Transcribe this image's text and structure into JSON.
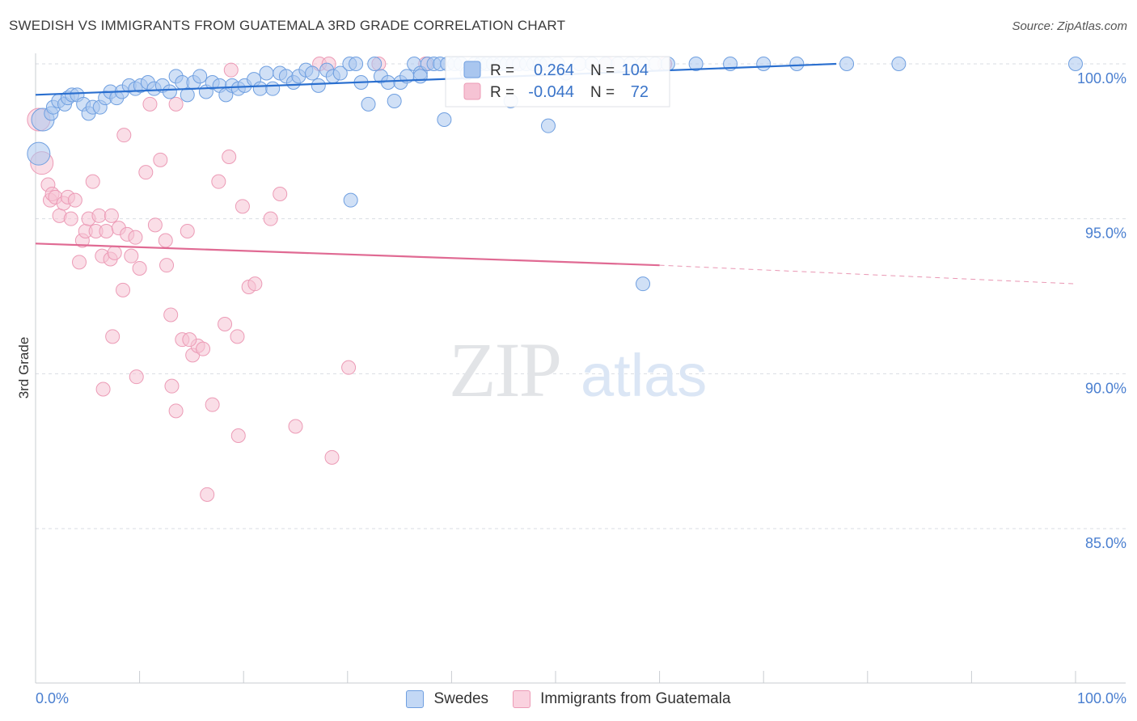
{
  "header": {
    "title": "SWEDISH VS IMMIGRANTS FROM GUATEMALA 3RD GRADE CORRELATION CHART",
    "source": "Source: ZipAtlas.com"
  },
  "watermark": {
    "zip": "ZIP",
    "atlas": "atlas"
  },
  "colors": {
    "blue_fill": "#a9c6ef",
    "blue_stroke": "#6f9fe0",
    "blue_line": "#2a6fcf",
    "pink_fill": "#f6c3d4",
    "pink_stroke": "#ec9bb6",
    "pink_line": "#e06a93",
    "tick_label": "#4a7fd0",
    "grid": "#d9dde3"
  },
  "legend_box": {
    "rows": [
      {
        "r_label": "R =",
        "r_value": "0.264",
        "n_label": "N =",
        "n_value": "104",
        "series": "blue"
      },
      {
        "r_label": "R =",
        "r_value": "-0.044",
        "n_label": "N =",
        "n_value": "72",
        "series": "pink"
      }
    ]
  },
  "bottom_legend": [
    {
      "label": "Swedes",
      "series": "blue"
    },
    {
      "label": "Immigrants from Guatemala",
      "series": "pink"
    }
  ],
  "chart_data": {
    "type": "scatter",
    "title": "SWEDISH VS IMMIGRANTS FROM GUATEMALA 3RD GRADE CORRELATION CHART",
    "xlabel": "",
    "ylabel": "3rd Grade",
    "x_tick_labels": [
      "0.0%",
      "100.0%"
    ],
    "y_tick_labels": [
      "100.0%",
      "95.0%",
      "90.0%",
      "85.0%"
    ],
    "y_ticks": [
      100,
      95,
      90,
      85
    ],
    "xlim": [
      0,
      100
    ],
    "ylim": [
      80.5,
      100.4
    ],
    "grid": true,
    "legend_placement": "top-center",
    "series": [
      {
        "name": "Swedes",
        "color": "#a9c6ef",
        "trend": {
          "x0": 0,
          "y0": 99.0,
          "x1": 77,
          "y1": 100.0
        },
        "points": [
          [
            0.3,
            97.1
          ],
          [
            0.7,
            98.2
          ],
          [
            1.5,
            98.4
          ],
          [
            1.7,
            98.6
          ],
          [
            2.2,
            98.8
          ],
          [
            2.8,
            98.7
          ],
          [
            3.1,
            98.9
          ],
          [
            3.5,
            99.0
          ],
          [
            4.0,
            99.0
          ],
          [
            4.6,
            98.7
          ],
          [
            5.1,
            98.4
          ],
          [
            5.5,
            98.6
          ],
          [
            6.2,
            98.6
          ],
          [
            6.7,
            98.9
          ],
          [
            7.2,
            99.1
          ],
          [
            7.8,
            98.9
          ],
          [
            8.3,
            99.1
          ],
          [
            9.0,
            99.3
          ],
          [
            9.6,
            99.2
          ],
          [
            10.1,
            99.3
          ],
          [
            10.8,
            99.4
          ],
          [
            11.4,
            99.2
          ],
          [
            12.2,
            99.3
          ],
          [
            12.9,
            99.1
          ],
          [
            13.5,
            99.6
          ],
          [
            14.1,
            99.4
          ],
          [
            14.6,
            99.0
          ],
          [
            15.2,
            99.4
          ],
          [
            15.8,
            99.6
          ],
          [
            16.4,
            99.1
          ],
          [
            17.0,
            99.4
          ],
          [
            17.7,
            99.3
          ],
          [
            18.3,
            99.0
          ],
          [
            18.9,
            99.3
          ],
          [
            19.5,
            99.2
          ],
          [
            20.1,
            99.3
          ],
          [
            21.0,
            99.5
          ],
          [
            21.6,
            99.2
          ],
          [
            22.2,
            99.7
          ],
          [
            22.8,
            99.2
          ],
          [
            23.5,
            99.7
          ],
          [
            24.1,
            99.6
          ],
          [
            24.8,
            99.4
          ],
          [
            25.3,
            99.6
          ],
          [
            26.0,
            99.8
          ],
          [
            26.6,
            99.7
          ],
          [
            27.2,
            99.3
          ],
          [
            28.0,
            99.8
          ],
          [
            28.6,
            99.6
          ],
          [
            29.3,
            99.7
          ],
          [
            30.2,
            100.0
          ],
          [
            30.8,
            100.0
          ],
          [
            31.3,
            99.4
          ],
          [
            32.0,
            98.7
          ],
          [
            32.6,
            100.0
          ],
          [
            33.2,
            99.6
          ],
          [
            33.9,
            99.4
          ],
          [
            34.5,
            98.8
          ],
          [
            35.1,
            99.4
          ],
          [
            35.7,
            99.6
          ],
          [
            36.4,
            100.0
          ],
          [
            37.0,
            99.7
          ],
          [
            37.7,
            100.0
          ],
          [
            38.3,
            100.0
          ],
          [
            38.9,
            100.0
          ],
          [
            39.6,
            100.0
          ],
          [
            40.3,
            100.0
          ],
          [
            40.9,
            100.0
          ],
          [
            41.5,
            99.7
          ],
          [
            42.2,
            100.0
          ],
          [
            42.8,
            100.0
          ],
          [
            43.4,
            100.0
          ],
          [
            44.0,
            100.0
          ],
          [
            44.7,
            100.0
          ],
          [
            45.3,
            100.0
          ],
          [
            45.9,
            100.0
          ],
          [
            46.5,
            100.0
          ],
          [
            47.2,
            100.0
          ],
          [
            47.9,
            100.0
          ],
          [
            48.5,
            100.0
          ],
          [
            49.1,
            100.0
          ],
          [
            50.2,
            100.0
          ],
          [
            51.0,
            99.7
          ],
          [
            52.3,
            100.0
          ],
          [
            53.5,
            100.0
          ],
          [
            54.8,
            100.0
          ],
          [
            56.0,
            100.0
          ],
          [
            57.2,
            100.0
          ],
          [
            58.4,
            100.0
          ],
          [
            59.6,
            100.0
          ],
          [
            60.8,
            100.0
          ],
          [
            63.5,
            100.0
          ],
          [
            66.8,
            100.0
          ],
          [
            70.0,
            100.0
          ],
          [
            73.2,
            100.0
          ],
          [
            78.0,
            100.0
          ],
          [
            83.0,
            100.0
          ],
          [
            100.0,
            100.0
          ],
          [
            45.7,
            98.8
          ],
          [
            39.3,
            98.2
          ],
          [
            49.3,
            98.0
          ],
          [
            30.3,
            95.6
          ],
          [
            58.4,
            92.9
          ],
          [
            37.0,
            99.6
          ]
        ]
      },
      {
        "name": "Immigrants from Guatemala",
        "color": "#f6c3d4",
        "trend": {
          "x0": 0,
          "y0": 94.2,
          "x1": 60,
          "y1": 93.5,
          "dash_to_x": 100,
          "dash_to_y": 92.9
        },
        "points": [
          [
            0.3,
            98.2
          ],
          [
            0.6,
            96.8
          ],
          [
            1.2,
            96.1
          ],
          [
            1.4,
            95.6
          ],
          [
            1.6,
            95.8
          ],
          [
            1.9,
            95.7
          ],
          [
            2.3,
            95.1
          ],
          [
            2.7,
            95.5
          ],
          [
            3.1,
            95.7
          ],
          [
            3.4,
            95.0
          ],
          [
            3.8,
            95.6
          ],
          [
            4.2,
            93.6
          ],
          [
            4.5,
            94.3
          ],
          [
            4.8,
            94.6
          ],
          [
            5.1,
            95.0
          ],
          [
            5.5,
            96.2
          ],
          [
            5.8,
            94.6
          ],
          [
            6.1,
            95.1
          ],
          [
            6.4,
            93.8
          ],
          [
            6.8,
            94.6
          ],
          [
            7.2,
            93.7
          ],
          [
            7.6,
            93.9
          ],
          [
            8.0,
            94.7
          ],
          [
            8.4,
            92.7
          ],
          [
            8.8,
            94.5
          ],
          [
            9.2,
            93.8
          ],
          [
            9.6,
            94.4
          ],
          [
            10.0,
            93.4
          ],
          [
            10.6,
            96.5
          ],
          [
            11.0,
            98.7
          ],
          [
            11.5,
            94.8
          ],
          [
            12.0,
            96.9
          ],
          [
            12.6,
            93.5
          ],
          [
            13.0,
            91.9
          ],
          [
            13.5,
            98.7
          ],
          [
            14.1,
            91.1
          ],
          [
            14.6,
            94.6
          ],
          [
            15.1,
            90.6
          ],
          [
            15.6,
            90.9
          ],
          [
            16.1,
            90.8
          ],
          [
            16.5,
            86.1
          ],
          [
            17.0,
            89.0
          ],
          [
            17.6,
            96.2
          ],
          [
            18.2,
            91.6
          ],
          [
            18.8,
            99.8
          ],
          [
            19.4,
            91.2
          ],
          [
            19.9,
            95.4
          ],
          [
            20.5,
            92.8
          ],
          [
            21.1,
            92.9
          ],
          [
            22.6,
            95.0
          ],
          [
            23.5,
            95.8
          ],
          [
            25.0,
            88.3
          ],
          [
            27.3,
            100.0
          ],
          [
            28.2,
            100.0
          ],
          [
            30.1,
            90.2
          ],
          [
            33.0,
            100.0
          ],
          [
            37.5,
            100.0
          ],
          [
            46.0,
            100.0
          ],
          [
            55.0,
            100.0
          ],
          [
            60.5,
            100.0
          ],
          [
            8.5,
            97.7
          ],
          [
            12.5,
            94.3
          ],
          [
            14.8,
            91.1
          ],
          [
            7.4,
            91.2
          ],
          [
            9.7,
            89.9
          ],
          [
            6.5,
            89.5
          ],
          [
            13.1,
            89.6
          ],
          [
            13.5,
            88.8
          ],
          [
            19.5,
            88.0
          ],
          [
            28.5,
            87.3
          ],
          [
            18.6,
            97.0
          ],
          [
            7.3,
            95.1
          ]
        ]
      }
    ]
  }
}
